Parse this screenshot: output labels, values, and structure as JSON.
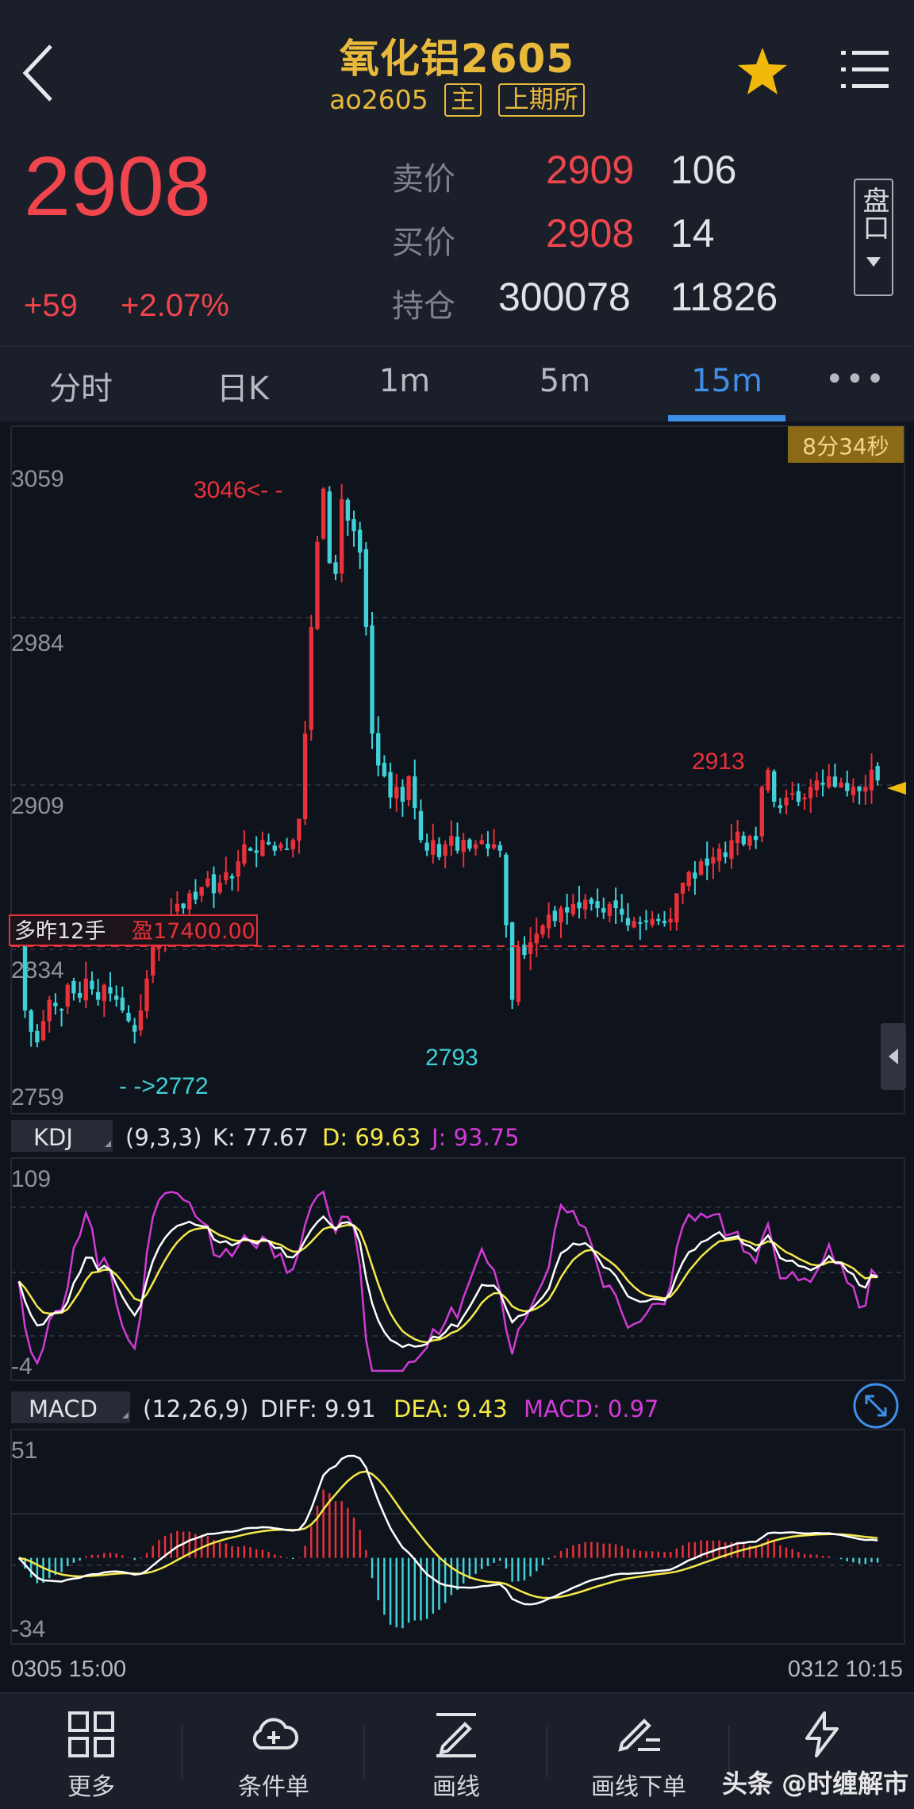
{
  "header": {
    "title": "氧化铝2605",
    "code": "ao2605",
    "main_tag": "主",
    "exchange_tag": "上期所"
  },
  "quote": {
    "last": "2908",
    "change": "+59",
    "change_pct": "+2.07%",
    "ask_label": "卖价",
    "ask_price": "2909",
    "ask_vol": "106",
    "bid_label": "买价",
    "bid_price": "2908",
    "bid_vol": "14",
    "oi_label": "持仓",
    "open_interest": "300078",
    "oi_change": "11826",
    "side_button": "盘口"
  },
  "tabs": {
    "items": [
      "分时",
      "日K",
      "1m",
      "5m",
      "15m"
    ],
    "active": "15m",
    "more": "•••"
  },
  "main_chart": {
    "countdown": "8分34秒",
    "y_ticks": [
      "3059",
      "2984",
      "2909",
      "2834",
      "2759"
    ],
    "high_label": "3046<- -",
    "low_label": "- ->2772",
    "local_low_label": "2793",
    "local_high_label": "2913",
    "position_label": "多昨12手",
    "pnl_label": "盈17400.00"
  },
  "kdj": {
    "name": "KDJ",
    "params": "(9,3,3)",
    "k_text": "K: 77.67",
    "d_text": "D: 69.63",
    "j_text": "J: 93.75",
    "y_top": "109",
    "y_bottom": "-4"
  },
  "macd": {
    "name": "MACD",
    "params": "(12,26,9)",
    "diff_text": "DIFF: 9.91",
    "dea_text": "DEA: 9.43",
    "macd_text": "MACD: 0.97",
    "y_top": "51",
    "y_bottom": "-34"
  },
  "time_axis": {
    "start": "0305 15:00",
    "end": "0312 10:15"
  },
  "bottom_bar": {
    "items": [
      "更多",
      "条件单",
      "画线",
      "画线下单"
    ],
    "watermark": "头条 @时缠解市"
  },
  "colors": {
    "up": "#e8313a",
    "down": "#3fd0d8",
    "gold": "#e8b93b",
    "blue": "#3f8fe8",
    "kdj_k": "#ffffff",
    "kdj_d": "#f5e94a",
    "kdj_j": "#d13bd6"
  },
  "chart_data": {
    "type": "candlestick",
    "y_axis": [
      2759,
      3059
    ],
    "closes": [
      2840,
      2800,
      2790,
      2785,
      2795,
      2805,
      2802,
      2800,
      2812,
      2808,
      2806,
      2815,
      2810,
      2805,
      2812,
      2808,
      2805,
      2800,
      2795,
      2790,
      2800,
      2815,
      2830,
      2835,
      2840,
      2845,
      2850,
      2848,
      2855,
      2852,
      2858,
      2862,
      2855,
      2860,
      2865,
      2862,
      2870,
      2878,
      2875,
      2874,
      2880,
      2878,
      2875,
      2878,
      2876,
      2880,
      2890,
      2930,
      2980,
      3020,
      3045,
      3010,
      3005,
      3040,
      3030,
      3025,
      3015,
      2980,
      2930,
      2915,
      2910,
      2900,
      2905,
      2898,
      2910,
      2895,
      2880,
      2875,
      2880,
      2872,
      2878,
      2882,
      2875,
      2880,
      2876,
      2878,
      2880,
      2876,
      2878,
      2875,
      2840,
      2805,
      2830,
      2826,
      2832,
      2836,
      2840,
      2845,
      2842,
      2848,
      2846,
      2850,
      2848,
      2852,
      2850,
      2848,
      2846,
      2850,
      2848,
      2845,
      2840,
      2842,
      2841,
      2842,
      2843,
      2842,
      2841,
      2843,
      2855,
      2860,
      2865,
      2862,
      2870,
      2868,
      2872,
      2876,
      2872,
      2880,
      2884,
      2878,
      2882,
      2880,
      2905,
      2913,
      2898,
      2895,
      2900,
      2902,
      2898,
      2900,
      2905,
      2908,
      2906,
      2910,
      2905,
      2907,
      2903,
      2905,
      2903,
      2905,
      2913,
      2908
    ],
    "macd_range": [
      -34,
      51
    ],
    "kdj_range": [
      -4,
      109
    ]
  }
}
